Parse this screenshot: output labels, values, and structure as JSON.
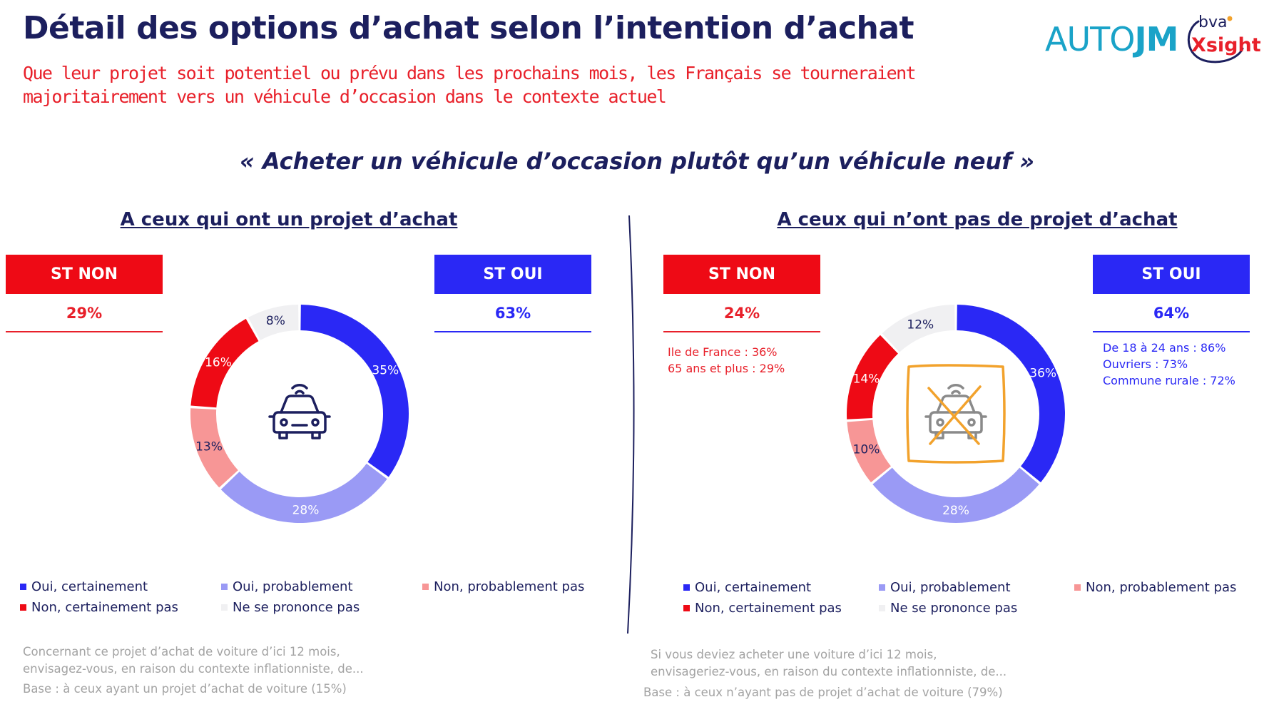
{
  "title": "Détail des options d’achat selon l’intention d’achat",
  "subtitle_line1": "Que leur projet soit potentiel ou prévu dans les prochains mois, les Français se tourneraient",
  "subtitle_line2": "majoritairement vers un véhicule d’occasion dans le contexte actuel",
  "logo_auto": "AUTO",
  "logo_jm": "JM",
  "logo_bva": "bva",
  "logo_xsight": "Xsight",
  "quote": "« Acheter un véhicule d’occasion plutôt qu’un véhicule neuf »",
  "colors": {
    "oui_certainement": "#2a28f5",
    "oui_probablement": "#9a9af5",
    "non_probablement_pas": "#f79696",
    "non_certainement_pas": "#ee0a15",
    "ne_se_prononce_pas": "#f0f0f2",
    "label_dark": "#1c1f5e",
    "label_light": "#ffffff",
    "icon": "#1c1f5e",
    "icon_grey": "#8a8a8a",
    "cross_orange": "#f2a22c"
  },
  "left": {
    "panel_title": "A ceux qui ont un projet d’achat",
    "st_non_label": "ST NON",
    "st_non_value": "29%",
    "st_oui_label": "ST OUI",
    "st_oui_value": "63%",
    "icon": "car-icon",
    "legend": [
      "Oui, certainement",
      "Oui, probablement",
      "Non, probablement pas",
      "Non, certainement pas",
      "Ne se prononce pas"
    ],
    "footer_line1": "Concernant ce projet d’achat de voiture d’ici 12 mois,",
    "footer_line2": "envisagez-vous, en raison du contexte inflationniste, de...",
    "footer_base": "Base : à ceux ayant un projet d’achat de voiture (15%)"
  },
  "right": {
    "panel_title": "A ceux qui n’ont pas de projet d’achat",
    "st_non_label": "ST NON",
    "st_non_value": "24%",
    "st_oui_label": "ST OUI",
    "st_oui_value": "64%",
    "non_notes": [
      "Ile de France : 36%",
      "65 ans et plus : 29%"
    ],
    "oui_notes": [
      "De 18 à 24 ans : 86%",
      "Ouvriers : 73%",
      "Commune rurale : 72%"
    ],
    "icon": "crossed-car-icon",
    "legend": [
      "Oui, certainement",
      "Oui, probablement",
      "Non, probablement pas",
      "Non, certainement pas",
      "Ne se prononce pas"
    ],
    "footer_line1": "Si vous deviez acheter une voiture d’ici 12 mois,",
    "footer_line2": "envisageriez-vous, en raison du contexte inflationniste, de...",
    "footer_base": "Base : à ceux n’ayant pas de projet d’achat de voiture (79%)"
  },
  "chart_data": [
    {
      "type": "pie",
      "title": "A ceux qui ont un projet d’achat",
      "categories": [
        "Oui, certainement",
        "Oui, probablement",
        "Non, probablement pas",
        "Non, certainement pas",
        "Ne se prononce pas"
      ],
      "values": [
        35,
        28,
        13,
        16,
        8
      ],
      "labels": [
        "35%",
        "28%",
        "13%",
        "16%",
        "8%"
      ],
      "donut": true,
      "legend": "bottom"
    },
    {
      "type": "pie",
      "title": "A ceux qui n’ont pas de projet d’achat",
      "categories": [
        "Oui, certainement",
        "Oui, probablement",
        "Non, probablement pas",
        "Non, certainement pas",
        "Ne se prononce pas"
      ],
      "values": [
        36,
        28,
        10,
        14,
        12
      ],
      "labels": [
        "36%",
        "28%",
        "10%",
        "14%",
        "12%"
      ],
      "donut": true,
      "legend": "bottom"
    }
  ]
}
